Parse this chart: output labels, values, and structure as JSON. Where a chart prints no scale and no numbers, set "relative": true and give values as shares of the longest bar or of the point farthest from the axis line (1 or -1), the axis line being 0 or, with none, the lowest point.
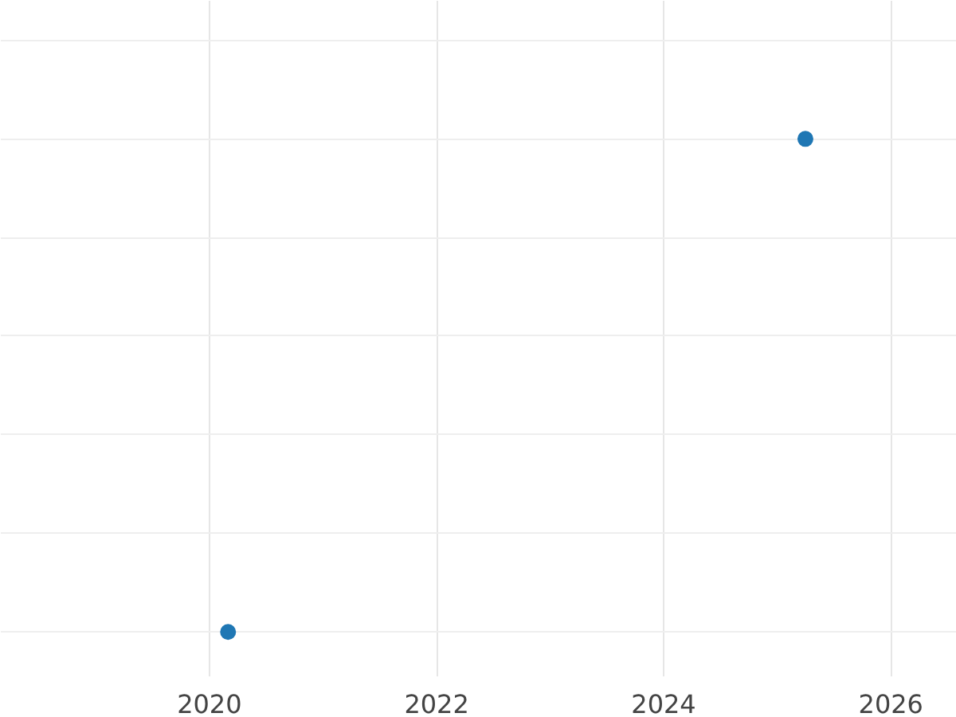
{
  "chart_data": {
    "type": "scatter",
    "relative": true,
    "x": [
      "2020-03",
      "2025-04"
    ],
    "series": [
      {
        "color": "#1f77b4",
        "values": [
          0,
          1
        ]
      }
    ],
    "xlim": [
      "2018-03",
      "2026-08"
    ],
    "xticks": [
      "2020",
      "2022",
      "2024",
      "2026"
    ],
    "grid": true,
    "marker": "circle",
    "tick_labels": "x"
  }
}
